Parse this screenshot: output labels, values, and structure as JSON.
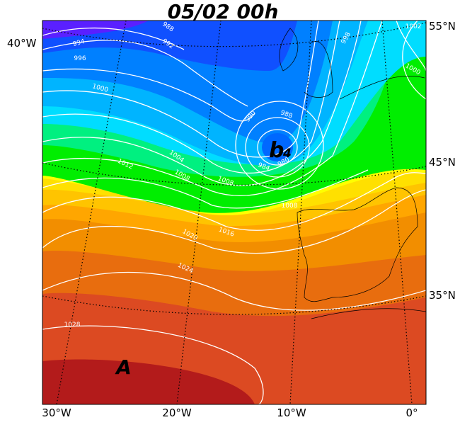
{
  "title": "05/02 00h",
  "axis_labels": {
    "left": [
      "40°W"
    ],
    "right": [
      "55°N",
      "45°N",
      "35°N"
    ],
    "bottom": [
      "30°W",
      "20°W",
      "10°W",
      "0°"
    ]
  },
  "centers": {
    "high": "A",
    "low": "b",
    "low_index": "4"
  },
  "isobar_labels": [
    "988",
    "994",
    "992",
    "996",
    "1000",
    "990",
    "988",
    "984",
    "980",
    "1004",
    "1012",
    "1008",
    "1008",
    "1020",
    "1016",
    "1024",
    "1028",
    "1002",
    "998",
    "1000",
    "1008"
  ]
}
